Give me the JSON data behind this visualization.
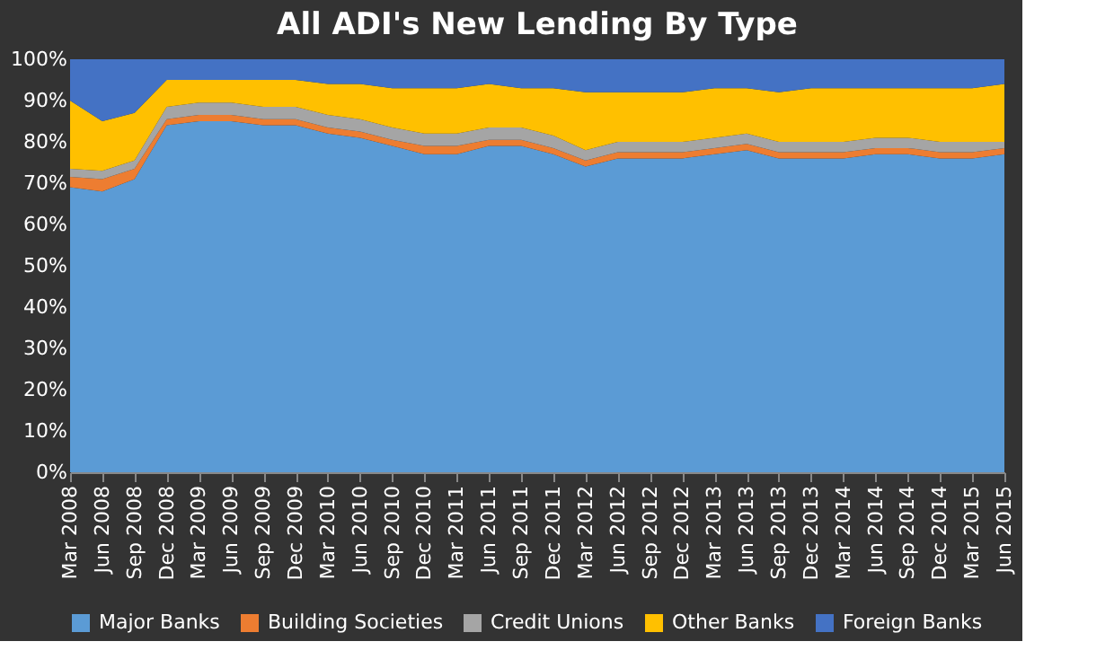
{
  "chart_data": {
    "type": "area",
    "title": "All ADI's New Lending  By Type",
    "stacked": true,
    "legend": "bottom",
    "grid": false,
    "categories": [
      "Mar 2008",
      "Jun 2008",
      "Sep 2008",
      "Dec 2008",
      "Mar 2009",
      "Jun 2009",
      "Sep 2009",
      "Dec 2009",
      "Mar 2010",
      "Jun 2010",
      "Sep 2010",
      "Dec 2010",
      "Mar 2011",
      "Jun 2011",
      "Sep 2011",
      "Dec 2011",
      "Mar 2012",
      "Jun 2012",
      "Sep 2012",
      "Dec 2012",
      "Mar 2013",
      "Jun 2013",
      "Sep 2013",
      "Dec 2013",
      "Mar 2014",
      "Jun 2014",
      "Sep 2014",
      "Dec 2014",
      "Mar 2015",
      "Jun 2015"
    ],
    "ylim": [
      0,
      100
    ],
    "yticks": [
      {
        "value": 0,
        "label": "0%"
      },
      {
        "value": 10,
        "label": "10%"
      },
      {
        "value": 20,
        "label": "20%"
      },
      {
        "value": 30,
        "label": "30%"
      },
      {
        "value": 40,
        "label": "40%"
      },
      {
        "value": 50,
        "label": "50%"
      },
      {
        "value": 60,
        "label": "60%"
      },
      {
        "value": 70,
        "label": "70%"
      },
      {
        "value": 80,
        "label": "80%"
      },
      {
        "value": 90,
        "label": "90%"
      },
      {
        "value": 100,
        "label": "100%"
      }
    ],
    "series": [
      {
        "name": "Major Banks",
        "color": "#5b9bd5",
        "values": [
          69,
          68,
          71,
          84,
          85,
          85,
          84,
          84,
          82,
          81,
          79,
          77,
          77,
          79,
          79,
          77,
          74,
          76,
          76,
          76,
          77,
          78,
          76,
          76,
          76,
          77,
          77,
          76,
          76,
          77
        ]
      },
      {
        "name": "Building Societies",
        "color": "#ed7d31",
        "values": [
          2.5,
          3,
          2.5,
          1.5,
          1.5,
          1.5,
          1.5,
          1.5,
          1.5,
          1.5,
          1.5,
          2,
          2,
          1.5,
          1.5,
          1.5,
          1.5,
          1.5,
          1.5,
          1.5,
          1.5,
          1.5,
          1.5,
          1.5,
          1.5,
          1.5,
          1.5,
          1.5,
          1.5,
          1.5
        ]
      },
      {
        "name": "Credit Unions",
        "color": "#a5a5a5",
        "values": [
          2,
          2,
          2,
          3,
          3,
          3,
          3,
          3,
          3,
          3,
          3,
          3,
          3,
          3,
          3,
          3,
          2.5,
          2.5,
          2.5,
          2.5,
          2.5,
          2.5,
          2.5,
          2.5,
          2.5,
          2.5,
          2.5,
          2.5,
          2.5,
          1.5
        ]
      },
      {
        "name": "Other Banks",
        "color": "#ffc000",
        "values": [
          16.5,
          12,
          11.5,
          6.5,
          5.5,
          5.5,
          6.5,
          6.5,
          7.5,
          8.5,
          9.5,
          11,
          11,
          10.5,
          9.5,
          11.5,
          14,
          12,
          12,
          12,
          12,
          11,
          12,
          13,
          13,
          12,
          12,
          13,
          13,
          14
        ]
      },
      {
        "name": "Foreign Banks",
        "color": "#4472c4",
        "values": [
          10,
          15,
          13,
          5,
          5,
          5,
          5,
          5,
          6,
          6,
          7,
          7,
          7,
          6,
          7,
          7,
          8,
          8,
          8,
          8,
          7,
          7,
          8,
          7,
          7,
          7,
          7,
          7,
          7,
          6
        ]
      }
    ]
  }
}
